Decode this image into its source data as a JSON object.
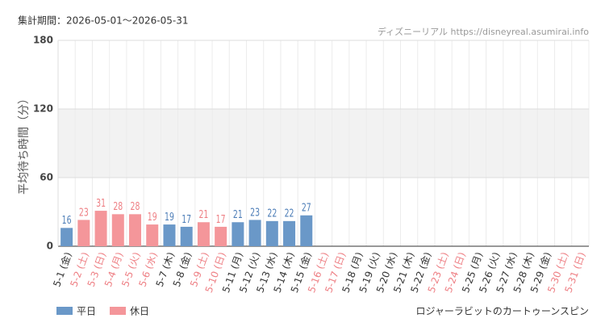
{
  "chart_data": {
    "type": "bar",
    "title": "集計期間：2026-05-01～2026-05-31",
    "source": "ディズニーリアル https://disneyreal.asumirai.info",
    "footer": "ロジャーラビットのカートゥーンスピン",
    "y_label": "平均待ち時間（分）",
    "categories": [
      "5-1 (金)",
      "5-2 (土)",
      "5-3 (日)",
      "5-4 (月)",
      "5-5 (火)",
      "5-6 (水)",
      "5-7 (木)",
      "5-8 (金)",
      "5-9 (土)",
      "5-10 (日)",
      "5-11 (月)",
      "5-12 (火)",
      "5-13 (水)",
      "5-14 (木)",
      "5-15 (金)",
      "5-16 (土)",
      "5-17 (日)",
      "5-18 (月)",
      "5-19 (火)",
      "5-20 (水)",
      "5-21 (木)",
      "5-22 (金)",
      "5-23 (土)",
      "5-24 (日)",
      "5-25 (月)",
      "5-26 (火)",
      "5-27 (水)",
      "5-28 (木)",
      "5-29 (金)",
      "5-30 (土)",
      "5-31 (日)"
    ],
    "category_label_colors": [
      "#333",
      "#ee7f84",
      "#ee7f84",
      "#ee7f84",
      "#ee7f84",
      "#ee7f84",
      "#333",
      "#333",
      "#ee7f84",
      "#ee7f84",
      "#333",
      "#333",
      "#333",
      "#333",
      "#333",
      "#ee7f84",
      "#ee7f84",
      "#333",
      "#333",
      "#333",
      "#333",
      "#333",
      "#ee7f84",
      "#ee7f84",
      "#333",
      "#333",
      "#333",
      "#333",
      "#333",
      "#ee7f84",
      "#ee7f84"
    ],
    "series": [
      {
        "name": "平日",
        "color": "#6a98c8",
        "label_color": "#4f7fb8",
        "values": [
          16,
          null,
          null,
          null,
          null,
          null,
          19,
          17,
          null,
          null,
          21,
          23,
          22,
          22,
          27,
          null,
          null,
          null,
          null,
          null,
          null,
          null,
          null,
          null,
          null,
          null,
          null,
          null,
          null,
          null,
          null
        ]
      },
      {
        "name": "休日",
        "color": "#f4969a",
        "label_color": "#ee7f84",
        "values": [
          null,
          23,
          31,
          28,
          28,
          19,
          null,
          null,
          21,
          17,
          null,
          null,
          null,
          null,
          null,
          null,
          null,
          null,
          null,
          null,
          null,
          null,
          null,
          null,
          null,
          null,
          null,
          null,
          null,
          null,
          null
        ]
      }
    ],
    "ylim": [
      0,
      180
    ],
    "yticks": [
      0,
      60,
      120,
      180
    ],
    "shaded_band": [
      60,
      120
    ],
    "grid": true
  }
}
